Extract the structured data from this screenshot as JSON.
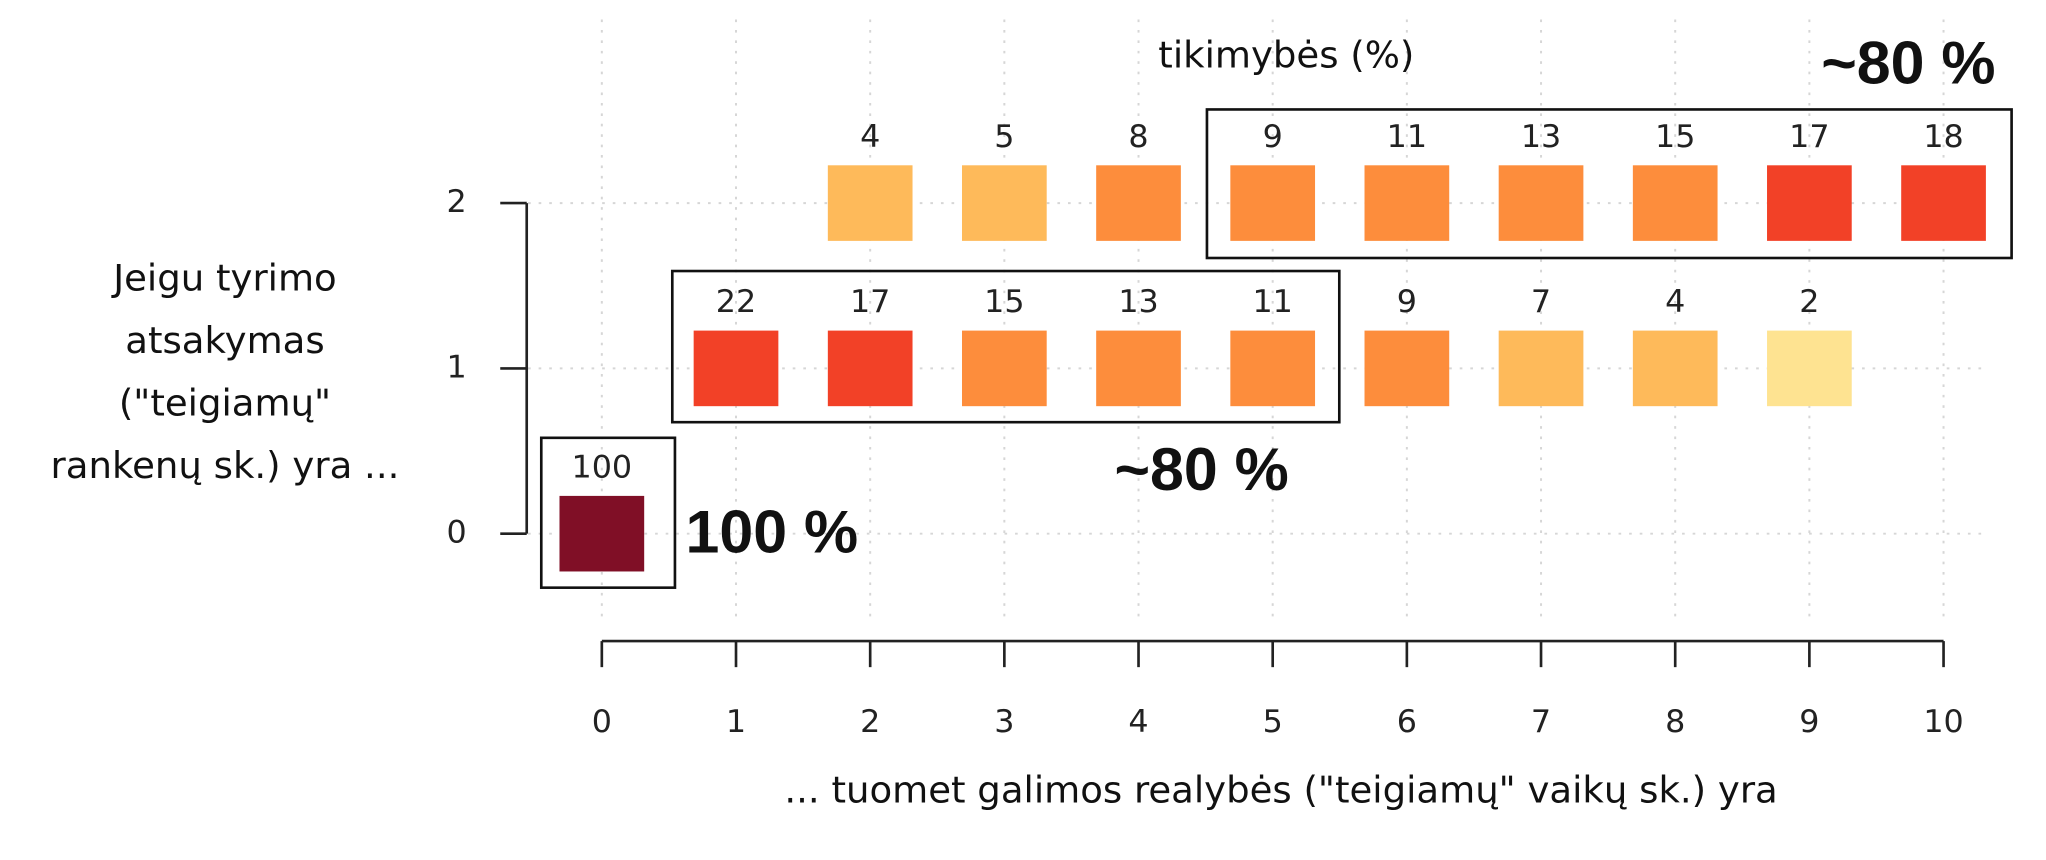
{
  "chart_data": {
    "type": "tile",
    "title": "tikimybės (%)",
    "x_label": "... tuomet galimos realybės (\"teigiamų\" vaikų sk.) yra",
    "y_label": [
      "Jeigu tyrimo",
      "atsakymas",
      "(\"teigiamų\"",
      "rankenų sk.) yra ..."
    ],
    "annotations": [
      "~80 %",
      "~80 %",
      "100 %"
    ],
    "xlim": [
      -0.55,
      10.3
    ],
    "ylim": [
      -0.5,
      3
    ],
    "xticks": [
      0,
      1,
      2,
      3,
      4,
      5,
      6,
      7,
      8,
      9,
      10
    ],
    "yticks": [
      0,
      1,
      2
    ],
    "grid": true,
    "cells": [
      {
        "x": 0,
        "y": 0,
        "value": 100,
        "color": "#800f26"
      },
      {
        "x": 1,
        "y": 1,
        "value": 22,
        "color": "#f24127"
      },
      {
        "x": 2,
        "y": 1,
        "value": 17,
        "color": "#f24127"
      },
      {
        "x": 3,
        "y": 1,
        "value": 15,
        "color": "#fd8d3c"
      },
      {
        "x": 4,
        "y": 1,
        "value": 13,
        "color": "#fd8d3c"
      },
      {
        "x": 5,
        "y": 1,
        "value": 11,
        "color": "#fd8d3c"
      },
      {
        "x": 6,
        "y": 1,
        "value": 9,
        "color": "#fd8d3c"
      },
      {
        "x": 7,
        "y": 1,
        "value": 7,
        "color": "#feba5a"
      },
      {
        "x": 8,
        "y": 1,
        "value": 4,
        "color": "#feba5a"
      },
      {
        "x": 9,
        "y": 1,
        "value": 2,
        "color": "#fee391"
      },
      {
        "x": 2,
        "y": 2,
        "value": 4,
        "color": "#feba5a"
      },
      {
        "x": 3,
        "y": 2,
        "value": 5,
        "color": "#feba5a"
      },
      {
        "x": 4,
        "y": 2,
        "value": 8,
        "color": "#fd8d3c"
      },
      {
        "x": 5,
        "y": 2,
        "value": 9,
        "color": "#fd8d3c"
      },
      {
        "x": 6,
        "y": 2,
        "value": 11,
        "color": "#fd8d3c"
      },
      {
        "x": 7,
        "y": 2,
        "value": 13,
        "color": "#fd8d3c"
      },
      {
        "x": 8,
        "y": 2,
        "value": 15,
        "color": "#fd8d3c"
      },
      {
        "x": 9,
        "y": 2,
        "value": 17,
        "color": "#f24127"
      },
      {
        "x": 10,
        "y": 2,
        "value": 18,
        "color": "#f24127"
      }
    ]
  }
}
